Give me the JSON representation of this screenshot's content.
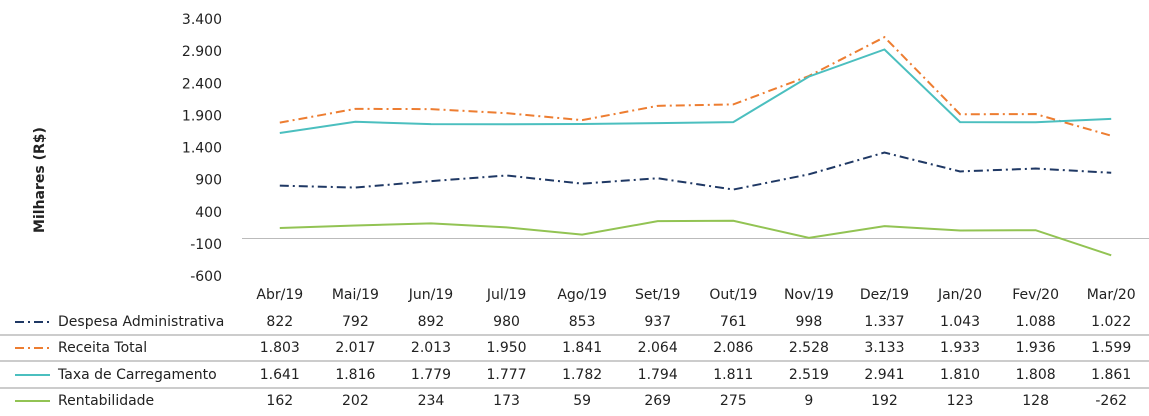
{
  "chart_data": {
    "type": "line",
    "y_label": "Milhares (R$)",
    "categories": [
      "Abr/19",
      "Mai/19",
      "Jun/19",
      "Jul/19",
      "Ago/19",
      "Set/19",
      "Out/19",
      "Nov/19",
      "Dez/19",
      "Jan/20",
      "Fev/20",
      "Mar/20"
    ],
    "ylim": [
      -600,
      3400
    ],
    "yticks": [
      -600,
      -100,
      400,
      900,
      {
        "value": 1400,
        "label": "1.400"
      },
      {
        "value": 1900,
        "label": "1.900"
      },
      {
        "value": 2400,
        "label": "2.400"
      },
      {
        "value": 2900,
        "label": "2.900"
      },
      {
        "value": 3400,
        "label": "3.400"
      }
    ],
    "series": [
      {
        "name": "Despesa Administrativa",
        "color": "#1f3864",
        "line_style": "dashdot",
        "values": [
          822,
          792,
          892,
          980,
          853,
          937,
          761,
          998,
          1337,
          1043,
          1088,
          1022
        ],
        "value_labels": [
          "822",
          "792",
          "892",
          "980",
          "853",
          "937",
          "761",
          "998",
          "1.337",
          "1.043",
          "1.088",
          "1.022"
        ]
      },
      {
        "name": "Receita Total",
        "color": "#ed7d31",
        "line_style": "dashdot",
        "values": [
          1803,
          2017,
          2013,
          1950,
          1841,
          2064,
          2086,
          2528,
          3133,
          1933,
          1936,
          1599
        ],
        "value_labels": [
          "1.803",
          "2.017",
          "2.013",
          "1.950",
          "1.841",
          "2.064",
          "2.086",
          "2.528",
          "3.133",
          "1.933",
          "1.936",
          "1.599"
        ]
      },
      {
        "name": "Taxa de Carregamento",
        "color": "#4bbfbf",
        "line_style": "solid",
        "values": [
          1641,
          1816,
          1779,
          1777,
          1782,
          1794,
          1811,
          2519,
          2941,
          1810,
          1808,
          1861
        ],
        "value_labels": [
          "1.641",
          "1.816",
          "1.779",
          "1.777",
          "1.782",
          "1.794",
          "1.811",
          "2.519",
          "2.941",
          "1.810",
          "1.808",
          "1.861"
        ]
      },
      {
        "name": "Rentabilidade",
        "color": "#92c353",
        "line_style": "solid",
        "values": [
          162,
          202,
          234,
          173,
          59,
          269,
          275,
          9,
          192,
          123,
          128,
          -262
        ],
        "value_labels": [
          "162",
          "202",
          "234",
          "173",
          "59",
          "269",
          "275",
          "9",
          "192",
          "123",
          "128",
          "-262"
        ]
      }
    ]
  }
}
